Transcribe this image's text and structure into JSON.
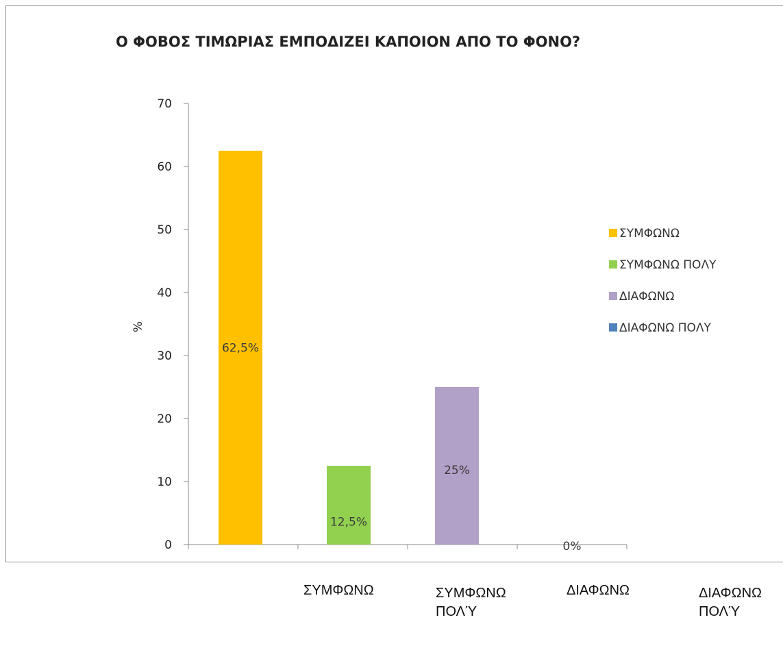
{
  "chart_data": {
    "type": "bar",
    "title": "Ο ΦΟΒΟΣ ΤΙΜΩΡΙΑΣ ΕΜΠΟΔΙΖΕΙ ΚΑΠΟΙΟΝ ΑΠΟ ΤΟ ΦΟΝΟ?",
    "ylabel": "%",
    "ylim": [
      0,
      70
    ],
    "yticks": [
      0,
      10,
      20,
      30,
      40,
      50,
      60,
      70
    ],
    "grid": false,
    "legend_position": "right",
    "series": [
      {
        "name": "ΣΥΜΦΩΝΩ",
        "value": 62.5,
        "label": "62,5%",
        "color": "#FFC000"
      },
      {
        "name": "ΣΥΜΦΩΝΩ ΠΟΛΥ",
        "value": 12.5,
        "label": "12,5%",
        "color": "#92D050"
      },
      {
        "name": "ΔΙΑΦΩΝΩ",
        "value": 25,
        "label": "25%",
        "color": "#B1A0C7"
      },
      {
        "name": "ΔΙΑΦΩΝΩ ΠΟΛΥ",
        "value": 0,
        "label": "0%",
        "color": "#4F81BD"
      }
    ]
  },
  "below_labels": [
    "ΣΥΜΦΩΝΩ",
    "ΣΥΜΦΩΝΩ\nΠΟΛΎ",
    "ΔΙΑΦΩΝΩ",
    "ΔΙΑΦΩΝΩ\nΠΟΛΎ"
  ]
}
